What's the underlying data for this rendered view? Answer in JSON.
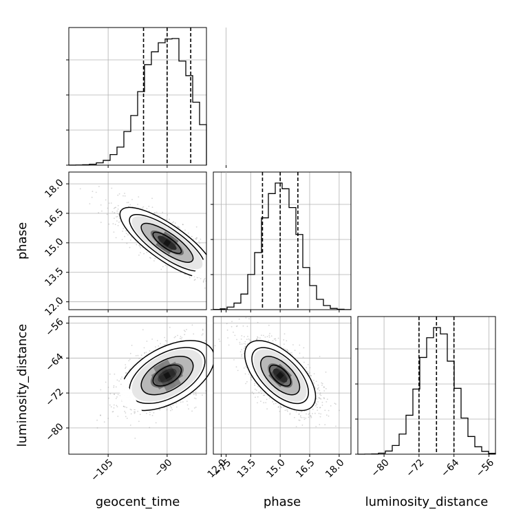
{
  "chart_data": {
    "type": "corner",
    "parameters": [
      "geocent_time",
      "phase",
      "luminosity_distance"
    ],
    "axis_labels": {
      "geocent_time": "geocent_time",
      "phase": "phase",
      "luminosity_distance": "luminosity_distance"
    },
    "ranges": {
      "geocent_time": [
        -115,
        -80
      ],
      "phase": [
        11.6,
        18.6
      ],
      "luminosity_distance": [
        -86,
        -54.5
      ]
    },
    "ticks": {
      "geocent_time": [
        -105,
        -90,
        -75
      ],
      "phase": [
        12.0,
        13.5,
        15.0,
        16.5,
        18.0
      ],
      "luminosity_distance": [
        -80,
        -72,
        -64,
        -56
      ]
    },
    "tick_labels": {
      "geocent_time": [
        "−105",
        "−90",
        "−75"
      ],
      "phase": [
        "12.0",
        "13.5",
        "15.0",
        "16.5",
        "18.0"
      ],
      "luminosity_distance": [
        "−80",
        "−72",
        "−64",
        "−56"
      ]
    },
    "quantiles": {
      "geocent_time": [
        -96,
        -90,
        -84
      ],
      "phase": [
        14.1,
        15.0,
        15.9
      ],
      "luminosity_distance": [
        -72,
        -68,
        -64
      ]
    },
    "means": {
      "geocent_time": -90,
      "phase": 15.0,
      "luminosity_distance": -68
    },
    "stds": {
      "geocent_time": 6.0,
      "phase": 0.9,
      "luminosity_distance": 4.0
    },
    "correlations": {
      "phase|geocent_time": -0.8,
      "luminosity_distance|geocent_time": 0.5,
      "luminosity_distance|phase": -0.6
    },
    "grid": true,
    "colors": {
      "line": "#000000",
      "scatter": "#888888",
      "grid": "#b0b0b0"
    }
  }
}
